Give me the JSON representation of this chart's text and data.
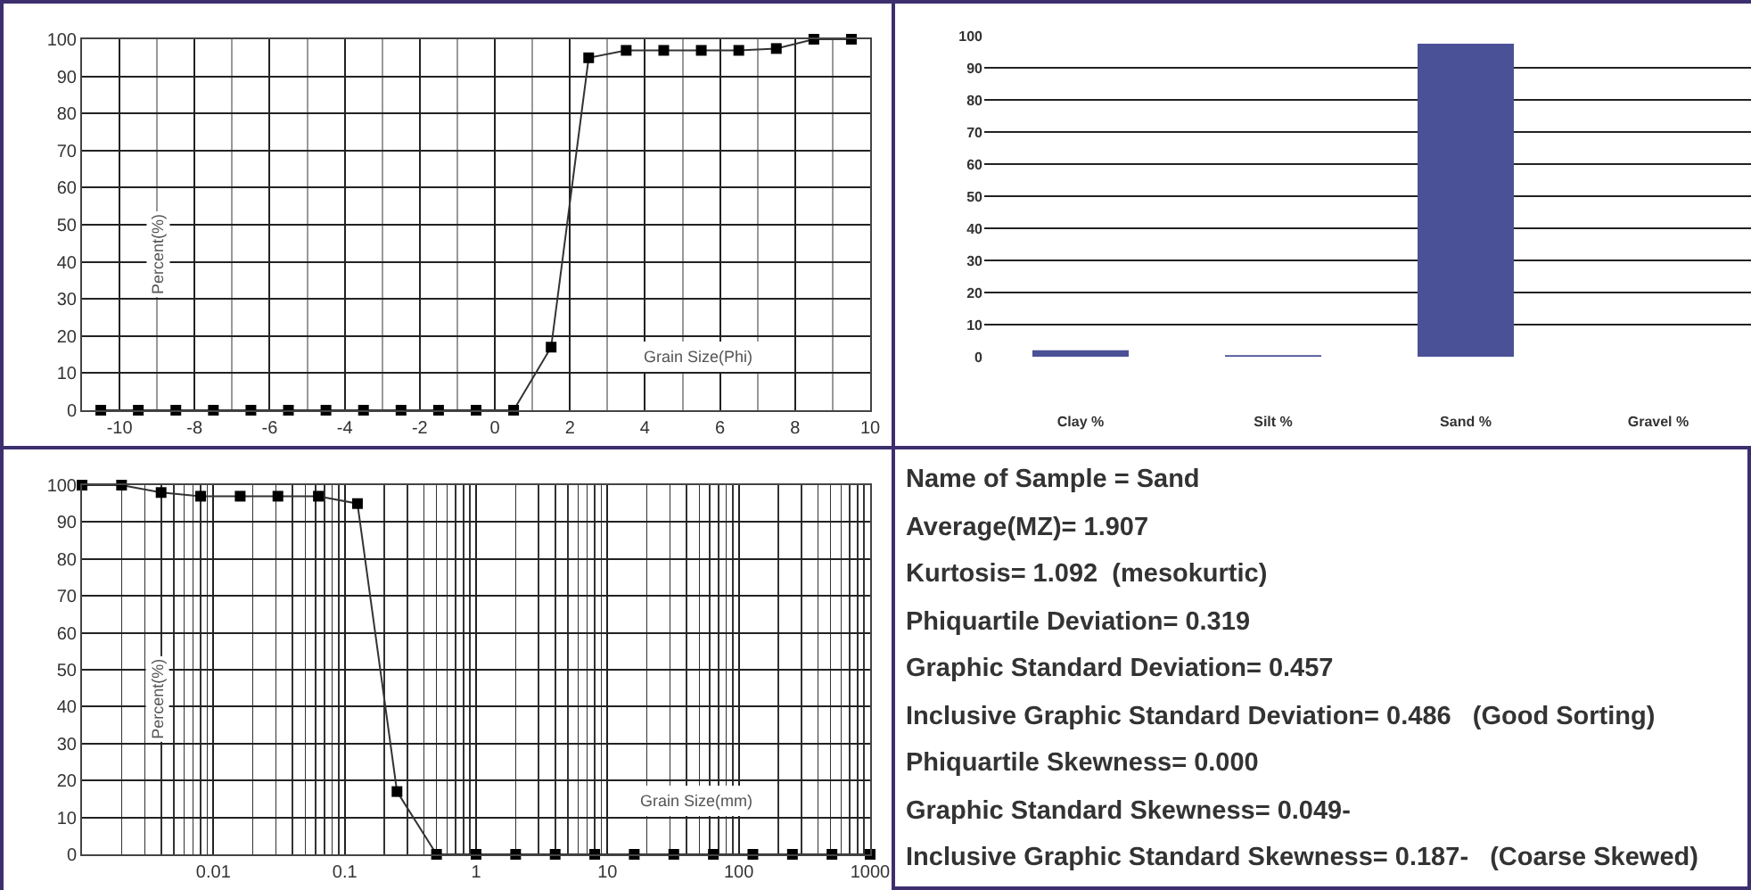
{
  "chart_data": [
    {
      "type": "line",
      "xlabel": "Grain Size(Phi)",
      "ylabel": "Percent(%)",
      "x": [
        -10.5,
        -9.5,
        -8.5,
        -7.5,
        -6.5,
        -5.5,
        -4.5,
        -3.5,
        -2.5,
        -1.5,
        -0.5,
        0.5,
        1.5,
        2.5,
        3.5,
        4.5,
        5.5,
        6.5,
        7.5,
        8.5,
        9.5
      ],
      "series": [
        {
          "color": "#333333",
          "values": [
            0,
            0,
            0,
            0,
            0,
            0,
            0,
            0,
            0,
            0,
            0,
            0,
            17,
            95,
            97,
            97,
            97,
            97,
            97.5,
            100,
            100
          ]
        }
      ],
      "xlim": [
        -11,
        10
      ],
      "xticks": [
        -10,
        -8,
        -6,
        -4,
        -2,
        0,
        2,
        4,
        6,
        8,
        10
      ],
      "ylim": [
        0,
        100
      ],
      "yticks": [
        0,
        10,
        20,
        30,
        40,
        50,
        60,
        70,
        80,
        90,
        100
      ],
      "grid": true,
      "marker": "square",
      "legend": false
    },
    {
      "type": "bar",
      "categories": [
        "Clay %",
        "Silt %",
        "Sand %",
        "Gravel %"
      ],
      "values": [
        2,
        0.5,
        97.5,
        0
      ],
      "color": "#4a5196",
      "ylim": [
        0,
        100
      ],
      "yticks": [
        0,
        10,
        20,
        30,
        40,
        50,
        60,
        70,
        80,
        90,
        100
      ],
      "grid": "y",
      "legend": false
    },
    {
      "type": "line",
      "xlabel": "Grain Size(mm)",
      "ylabel": "Percent(%)",
      "log": "x",
      "x": [
        0.001,
        0.002,
        0.004,
        0.008,
        0.016,
        0.031,
        0.063,
        0.125,
        0.25,
        0.5,
        1,
        2,
        4,
        8,
        16,
        32,
        64,
        128,
        256,
        512,
        1000
      ],
      "series": [
        {
          "color": "#333333",
          "values": [
            100,
            100,
            98,
            97,
            97,
            97,
            97,
            95,
            17,
            0,
            0,
            0,
            0,
            0,
            0,
            0,
            0,
            0,
            0,
            0,
            0
          ]
        }
      ],
      "xlim": [
        0.001,
        1000
      ],
      "xticks": [
        0.01,
        0.1,
        1,
        10,
        100,
        1000
      ],
      "ylim": [
        0,
        100
      ],
      "yticks": [
        0,
        10,
        20,
        30,
        40,
        50,
        60,
        70,
        80,
        90,
        100
      ],
      "grid": true,
      "marker": "square",
      "legend": false
    },
    {
      "type": "other",
      "annotations": [
        "Name of Sample = Sand",
        "Average(MZ)= 1.907",
        "Kurtosis= 1.092  (mesokurtic)",
        "Phiquartile Deviation= 0.319",
        "Graphic Standard Deviation= 0.457",
        "Inclusive Graphic Standard Deviation= 0.486   (Good Sorting)",
        "Phiquartile Skewness= 0.000",
        "Graphic Standard Skewness= 0.049-",
        "Inclusive Graphic Standard Skewness= 0.187-   (Coarse Skewed)"
      ]
    }
  ]
}
